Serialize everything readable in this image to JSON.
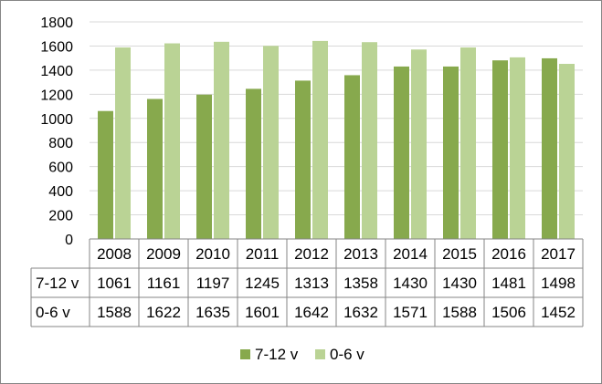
{
  "chart_data": {
    "type": "bar",
    "title": "",
    "xlabel": "",
    "ylabel": "",
    "categories": [
      "2008",
      "2009",
      "2010",
      "2011",
      "2012",
      "2013",
      "2014",
      "2015",
      "2016",
      "2017"
    ],
    "ylim": [
      0,
      1800
    ],
    "yticks": [
      0,
      200,
      400,
      600,
      800,
      1000,
      1200,
      1400,
      1600,
      1800
    ],
    "grid": true,
    "legend_position": "bottom",
    "data_table": true,
    "series": [
      {
        "name": "7-12 v",
        "color": "#87A94D",
        "values": [
          1061,
          1161,
          1197,
          1245,
          1313,
          1358,
          1430,
          1430,
          1481,
          1498
        ]
      },
      {
        "name": "0-6 v",
        "color": "#BAD395",
        "values": [
          1588,
          1622,
          1635,
          1601,
          1642,
          1632,
          1571,
          1588,
          1506,
          1452
        ]
      }
    ]
  }
}
